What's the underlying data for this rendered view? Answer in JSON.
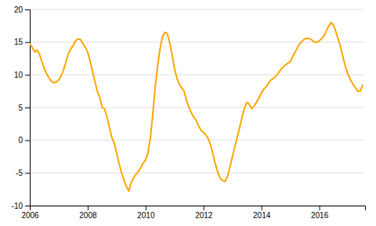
{
  "chart_data": {
    "type": "line",
    "x": [
      2006.0,
      2006.08,
      2006.17,
      2006.25,
      2006.33,
      2006.42,
      2006.5,
      2006.58,
      2006.67,
      2006.75,
      2006.83,
      2006.92,
      2007.0,
      2007.08,
      2007.17,
      2007.25,
      2007.33,
      2007.42,
      2007.5,
      2007.58,
      2007.67,
      2007.75,
      2007.83,
      2007.92,
      2008.0,
      2008.08,
      2008.17,
      2008.25,
      2008.33,
      2008.42,
      2008.5,
      2008.58,
      2008.67,
      2008.75,
      2008.83,
      2008.92,
      2009.0,
      2009.08,
      2009.17,
      2009.25,
      2009.33,
      2009.42,
      2009.5,
      2009.58,
      2009.67,
      2009.75,
      2009.83,
      2009.92,
      2010.0,
      2010.08,
      2010.17,
      2010.25,
      2010.33,
      2010.42,
      2010.5,
      2010.58,
      2010.67,
      2010.75,
      2010.83,
      2010.92,
      2011.0,
      2011.08,
      2011.17,
      2011.25,
      2011.33,
      2011.42,
      2011.5,
      2011.58,
      2011.67,
      2011.75,
      2011.83,
      2011.92,
      2012.0,
      2012.08,
      2012.17,
      2012.25,
      2012.33,
      2012.42,
      2012.5,
      2012.58,
      2012.67,
      2012.75,
      2012.83,
      2012.92,
      2013.0,
      2013.08,
      2013.17,
      2013.25,
      2013.33,
      2013.42,
      2013.5,
      2013.58,
      2013.67,
      2013.75,
      2013.83,
      2013.92,
      2014.0,
      2014.08,
      2014.17,
      2014.25,
      2014.33,
      2014.42,
      2014.5,
      2014.58,
      2014.67,
      2014.75,
      2014.83,
      2014.92,
      2015.0,
      2015.08,
      2015.17,
      2015.25,
      2015.33,
      2015.42,
      2015.5,
      2015.58,
      2015.67,
      2015.75,
      2015.83,
      2015.92,
      2016.0,
      2016.08,
      2016.17,
      2016.25,
      2016.33,
      2016.42,
      2016.5,
      2016.58,
      2016.67,
      2016.75,
      2016.83,
      2016.92,
      2017.0,
      2017.08,
      2017.17,
      2017.25,
      2017.33,
      2017.42,
      2017.5
    ],
    "values": [
      14.8,
      14.2,
      13.5,
      13.8,
      13.2,
      12.0,
      11.0,
      10.2,
      9.5,
      9.0,
      8.8,
      8.9,
      9.2,
      9.8,
      10.8,
      12.0,
      13.2,
      14.0,
      14.5,
      15.2,
      15.5,
      15.4,
      14.8,
      14.2,
      13.5,
      12.2,
      10.5,
      9.0,
      7.5,
      6.5,
      5.0,
      4.8,
      3.5,
      2.0,
      0.5,
      -0.5,
      -2.0,
      -3.5,
      -5.0,
      -6.0,
      -7.0,
      -7.8,
      -6.5,
      -5.8,
      -5.2,
      -4.8,
      -4.2,
      -3.5,
      -3.0,
      -2.0,
      0.5,
      4.0,
      8.0,
      11.5,
      14.0,
      15.8,
      16.5,
      16.3,
      15.0,
      13.0,
      11.0,
      9.5,
      8.5,
      8.0,
      7.5,
      6.0,
      5.0,
      4.2,
      3.5,
      3.0,
      2.2,
      1.5,
      1.2,
      0.8,
      0.2,
      -0.8,
      -2.2,
      -3.8,
      -5.0,
      -5.8,
      -6.2,
      -6.3,
      -5.5,
      -4.0,
      -2.5,
      -1.0,
      0.5,
      2.0,
      3.5,
      5.0,
      5.8,
      5.5,
      4.8,
      5.2,
      5.8,
      6.5,
      7.2,
      7.8,
      8.2,
      8.8,
      9.2,
      9.5,
      9.8,
      10.2,
      10.8,
      11.2,
      11.5,
      11.8,
      12.0,
      12.8,
      13.5,
      14.2,
      14.8,
      15.2,
      15.5,
      15.6,
      15.5,
      15.3,
      15.0,
      15.0,
      15.2,
      15.5,
      16.0,
      16.8,
      17.5,
      18.0,
      17.5,
      16.5,
      15.2,
      14.0,
      12.5,
      11.0,
      10.0,
      9.2,
      8.5,
      8.0,
      7.5,
      7.5,
      8.5
    ],
    "color": "#FFA500",
    "xlim": [
      2006.0,
      2017.58
    ],
    "xticks": [
      2006,
      2008,
      2010,
      2012,
      2014,
      2016
    ],
    "ylim": [
      -10,
      20
    ],
    "yticks": [
      -10,
      -5,
      0,
      5,
      10,
      15,
      20
    ],
    "grid": true
  }
}
